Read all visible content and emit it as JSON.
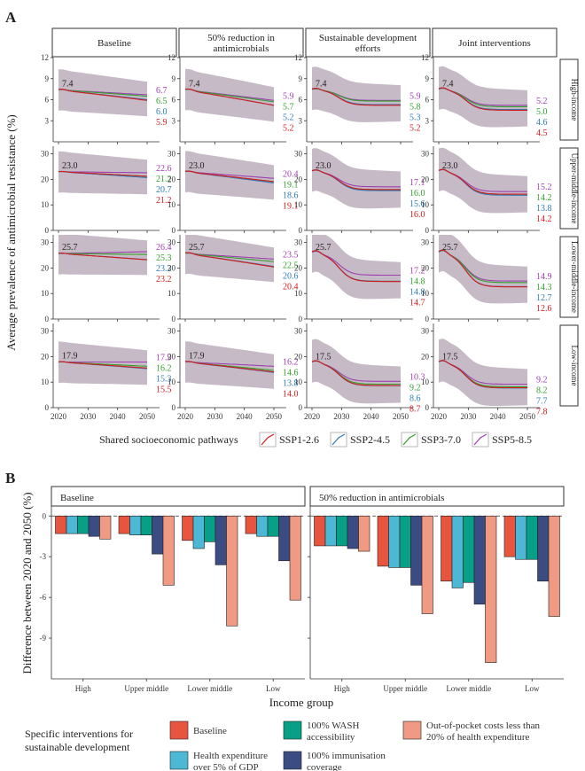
{
  "panelA": {
    "letter": "A",
    "ylabel": "Average prevalence of antimicrobial resistance (%)",
    "columns": [
      "Baseline",
      "50% reduction in\nantimicrobials",
      "Sustainable development\nefforts",
      "Joint interventions"
    ],
    "rows": [
      "High-income",
      "Upper-middle-income",
      "Lower-middle-income",
      "Low-income"
    ],
    "x_ticks": [
      2020,
      2030,
      2040,
      2050
    ],
    "y_ticks": [
      [
        3,
        6,
        9,
        12
      ],
      [
        0,
        10,
        20,
        30
      ],
      [
        0,
        10,
        20,
        30
      ],
      [
        0,
        10,
        20,
        30
      ]
    ],
    "y_ranges": [
      [
        0,
        12
      ],
      [
        0,
        33
      ],
      [
        0,
        33
      ],
      [
        0,
        33
      ]
    ],
    "legend_title": "Shared socioeconomic pathways",
    "legend_items": [
      "SSP1-2.6",
      "SSP2-4.5",
      "SSP3-7.0",
      "SSP5-8.5"
    ],
    "colors": {
      "SSP1-2.6": "#d7191c",
      "SSP2-4.5": "#2c7bb6",
      "SSP3-7.0": "#33a02c",
      "SSP5-8.5": "#9e3fb2",
      "band": "#bfb3bf"
    }
  },
  "chart_data": [
    {
      "type": "line",
      "title": "",
      "xlabel": "",
      "ylabel": "Average prevalence of antimicrobial resistance (%)",
      "x": [
        2020,
        2050
      ],
      "start_values": [
        [
          "7.4",
          "7.4",
          "7.4",
          "7.4"
        ],
        [
          "23.0",
          "23.0",
          "23.0",
          "23.0"
        ],
        [
          "25.7",
          "25.7",
          "25.7",
          "25.7"
        ],
        [
          "17.9",
          "17.9",
          "17.5",
          "17.5"
        ]
      ],
      "end_values": {
        "order": [
          "SSP5-8.5",
          "SSP3-7.0",
          "SSP2-4.5",
          "SSP1-2.6"
        ],
        "cells": [
          [
            [
              "6.7",
              "6.5",
              "6.0",
              "5.9"
            ],
            [
              "5.9",
              "5.7",
              "5.2",
              "5.2"
            ],
            [
              "5.9",
              "5.8",
              "5.3",
              "5.2"
            ],
            [
              "5.2",
              "5.0",
              "4.6",
              "4.5"
            ]
          ],
          [
            [
              "22.6",
              "21.2",
              "20.7",
              "21.2"
            ],
            [
              "20.4",
              "19.1",
              "18.6",
              "19.1"
            ],
            [
              "17.1",
              "16.0",
              "15.6",
              "16.0"
            ],
            [
              "15.2",
              "14.2",
              "13.8",
              "14.2"
            ]
          ],
          [
            [
              "26.4",
              "25.3",
              "23.3",
              "23.2"
            ],
            [
              "23.5",
              "22.5",
              "20.6",
              "20.4"
            ],
            [
              "17.2",
              "14.8",
              "14.8",
              "14.7"
            ],
            [
              "14.9",
              "14.3",
              "12.7",
              "12.6"
            ]
          ],
          [
            [
              "17.9",
              "16.2",
              "15.3",
              "15.5"
            ],
            [
              "16.2",
              "14.6",
              "13.8",
              "14.0"
            ],
            [
              "10.3",
              "9.2",
              "8.6",
              "8.7"
            ],
            [
              "9.2",
              "8.2",
              "7.7",
              "7.8"
            ]
          ]
        ]
      }
    },
    {
      "type": "bar",
      "title": "",
      "xlabel": "Income group",
      "ylabel": "Difference between 2020 and 2050 (%)",
      "facets": [
        "Baseline",
        "50% reduction in antimicrobials"
      ],
      "categories": [
        "High",
        "Upper middle",
        "Lower middle",
        "Low"
      ],
      "ylim": [
        -12,
        0.8
      ],
      "y_ticks": [
        0,
        -3,
        -6,
        -9
      ],
      "series": [
        {
          "name": "Baseline",
          "color": "#e8553f",
          "values": [
            [
              -1.3,
              -1.3,
              -1.8,
              -1.3
            ],
            [
              -2.2,
              -3.7,
              -4.8,
              -3.0
            ]
          ]
        },
        {
          "name": "Health expenditure over 5% of GDP",
          "color": "#4cb8d6",
          "values": [
            [
              -1.3,
              -1.4,
              -2.4,
              -1.5
            ],
            [
              -2.2,
              -3.8,
              -5.3,
              -3.2
            ]
          ]
        },
        {
          "name": "100% WASH accessibility",
          "color": "#089f87",
          "values": [
            [
              -1.3,
              -1.4,
              -1.9,
              -1.5
            ],
            [
              -2.2,
              -3.8,
              -4.9,
              -3.2
            ]
          ]
        },
        {
          "name": "100% immunisation coverage",
          "color": "#3b4c82",
          "values": [
            [
              -1.5,
              -2.8,
              -3.6,
              -3.3
            ],
            [
              -2.4,
              -5.1,
              -6.5,
              -4.8
            ]
          ]
        },
        {
          "name": "Out-of-pocket costs less than 20% of health expenditure",
          "color": "#f19a83",
          "values": [
            [
              -1.7,
              -5.1,
              -8.1,
              -6.2
            ],
            [
              -2.6,
              -7.2,
              -10.8,
              -7.4
            ]
          ]
        }
      ],
      "legend": {
        "title": "Specific interventions for\nsustainable development",
        "labels": [
          "Baseline",
          "Health expenditure\nover 5% of GDP",
          "100% WASH\naccessibility",
          "100% immunisation\ncoverage",
          "Out-of-pocket costs less than\n20% of health expenditure"
        ]
      }
    }
  ],
  "panelB": {
    "letter": "B"
  }
}
